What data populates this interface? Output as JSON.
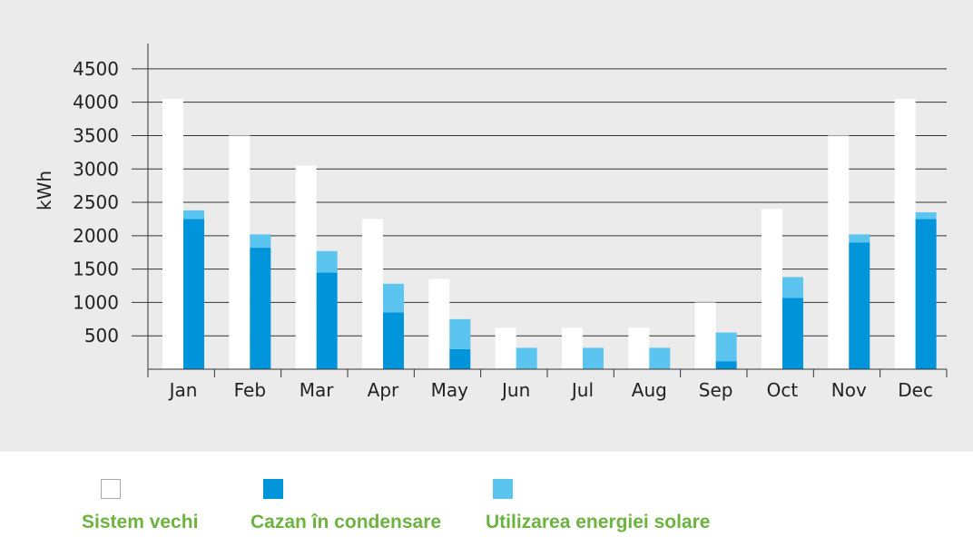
{
  "chart_data": {
    "type": "bar",
    "categories": [
      "Jan",
      "Feb",
      "Mar",
      "Apr",
      "May",
      "Jun",
      "Jul",
      "Aug",
      "Sep",
      "Oct",
      "Nov",
      "Dec"
    ],
    "ylabel": "kWh",
    "ylim": [
      0,
      4500
    ],
    "yticks": [
      500,
      1000,
      1500,
      2000,
      2500,
      3000,
      3500,
      4000,
      4500
    ],
    "grid": true,
    "legend_position": "bottom",
    "series": [
      {
        "name": "Sistem vechi",
        "color": "#ffffff",
        "values": [
          4050,
          3500,
          3050,
          2250,
          1350,
          620,
          620,
          620,
          1000,
          2400,
          3500,
          4050
        ]
      },
      {
        "name": "Cazan în condensare",
        "color": "#0095db",
        "stack": "b",
        "values": [
          2250,
          1820,
          1450,
          850,
          300,
          0,
          0,
          0,
          120,
          1070,
          1900,
          2250
        ]
      },
      {
        "name": "Utilizarea energiei solare",
        "color": "#5bc5ef",
        "stack": "b",
        "values": [
          130,
          200,
          320,
          430,
          450,
          320,
          320,
          320,
          430,
          310,
          120,
          100
        ]
      }
    ]
  }
}
